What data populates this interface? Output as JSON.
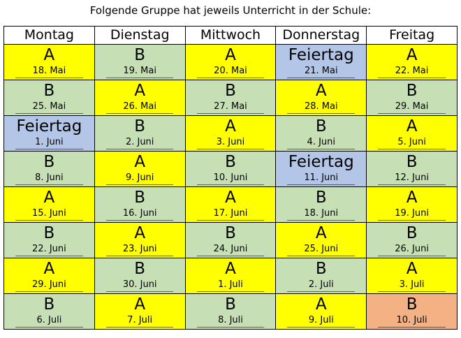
{
  "title": "Folgende Gruppe hat jeweils Unterricht in der Schule:",
  "headers": [
    "Montag",
    "Dienstag",
    "Mittwoch",
    "Donnerstag",
    "Freitag"
  ],
  "colors": {
    "yellow": "#ffff00",
    "green": "#c6dfb4",
    "blue": "#b4c6e7",
    "orange": "#f4b183"
  },
  "rows": [
    [
      {
        "group": "A",
        "date": "18. Mai",
        "color": "yellow"
      },
      {
        "group": "B",
        "date": "19. Mai",
        "color": "green"
      },
      {
        "group": "A",
        "date": "20. Mai",
        "color": "yellow"
      },
      {
        "group": "Feiertag",
        "date": "21. Mai",
        "color": "blue"
      },
      {
        "group": "A",
        "date": "22. Mai",
        "color": "yellow"
      }
    ],
    [
      {
        "group": "B",
        "date": "25. Mai",
        "color": "green"
      },
      {
        "group": "A",
        "date": "26. Mai",
        "color": "yellow"
      },
      {
        "group": "B",
        "date": "27. Mai",
        "color": "green"
      },
      {
        "group": "A",
        "date": "28. Mai",
        "color": "yellow"
      },
      {
        "group": "B",
        "date": "29. Mai",
        "color": "green"
      }
    ],
    [
      {
        "group": "Feiertag",
        "date": "1. Juni",
        "color": "blue"
      },
      {
        "group": "B",
        "date": "2. Juni",
        "color": "green"
      },
      {
        "group": "A",
        "date": "3. Juni",
        "color": "yellow"
      },
      {
        "group": "B",
        "date": "4. Juni",
        "color": "green"
      },
      {
        "group": "A",
        "date": "5. Juni",
        "color": "yellow"
      }
    ],
    [
      {
        "group": "B",
        "date": "8. Juni",
        "color": "green"
      },
      {
        "group": "A",
        "date": "9. Juni",
        "color": "yellow"
      },
      {
        "group": "B",
        "date": "10. Juni",
        "color": "green"
      },
      {
        "group": "Feiertag",
        "date": "11. Juni",
        "color": "blue"
      },
      {
        "group": "B",
        "date": "12. Juni",
        "color": "green"
      }
    ],
    [
      {
        "group": "A",
        "date": "15. Juni",
        "color": "yellow"
      },
      {
        "group": "B",
        "date": "16. Juni",
        "color": "green"
      },
      {
        "group": "A",
        "date": "17. Juni",
        "color": "yellow"
      },
      {
        "group": "B",
        "date": "18. Juni",
        "color": "green"
      },
      {
        "group": "A",
        "date": "19. Juni",
        "color": "yellow"
      }
    ],
    [
      {
        "group": "B",
        "date": "22. Juni",
        "color": "green"
      },
      {
        "group": "A",
        "date": "23. Juni",
        "color": "yellow"
      },
      {
        "group": "B",
        "date": "24. Juni",
        "color": "green"
      },
      {
        "group": "A",
        "date": "25. Juni",
        "color": "yellow"
      },
      {
        "group": "B",
        "date": "26. Juni",
        "color": "green"
      }
    ],
    [
      {
        "group": "A",
        "date": "29. Juni",
        "color": "yellow"
      },
      {
        "group": "B",
        "date": "30. Juni",
        "color": "green"
      },
      {
        "group": "A",
        "date": "1. Juli",
        "color": "yellow"
      },
      {
        "group": "B",
        "date": "2. Juli",
        "color": "green"
      },
      {
        "group": "A",
        "date": "3. Juli",
        "color": "yellow"
      }
    ],
    [
      {
        "group": "B",
        "date": "6. Juli",
        "color": "green"
      },
      {
        "group": "A",
        "date": "7. Juli",
        "color": "yellow"
      },
      {
        "group": "B",
        "date": "8. Juli",
        "color": "green"
      },
      {
        "group": "A",
        "date": "9. Juli",
        "color": "yellow"
      },
      {
        "group": "B",
        "date": "10. Juli",
        "color": "orange"
      }
    ]
  ]
}
